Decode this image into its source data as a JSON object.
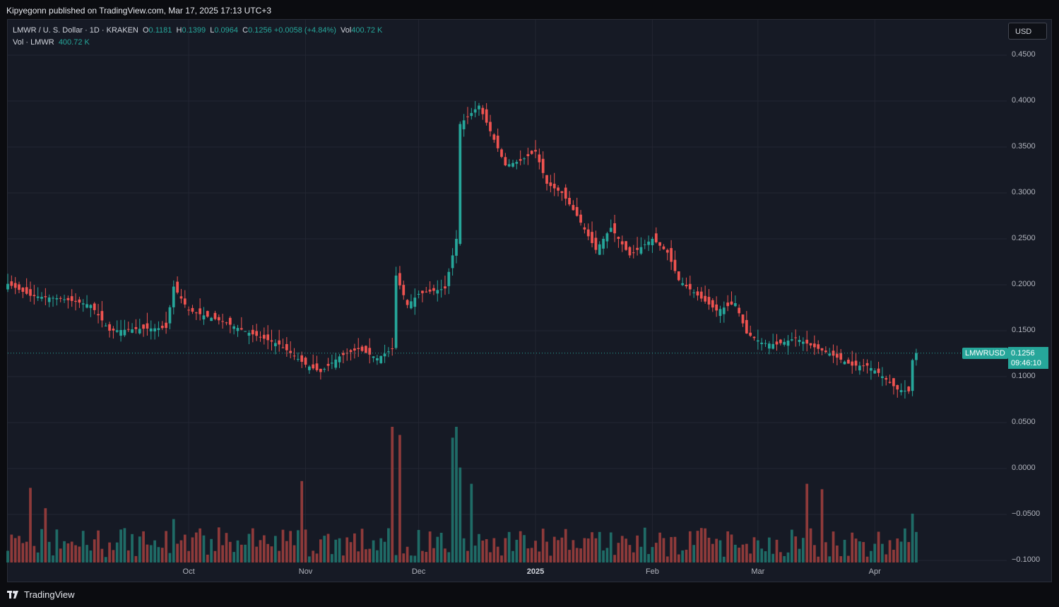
{
  "header": {
    "published": "Kipyegonn published on TradingView.com, Mar 17, 2025 17:13 UTC+3"
  },
  "legend": {
    "ticker": "LMWR / U. S. Dollar · 1D · KRAKEN",
    "o_label": "O",
    "o_value": "0.1181",
    "h_label": "H",
    "h_value": "0.1399",
    "l_label": "L",
    "l_value": "0.0964",
    "c_label": "C",
    "c_value": "0.1256",
    "change": "+0.0058 (+4.84%)",
    "vol_label": "Vol",
    "vol_value": "400.72 K",
    "vol_line_label": "Vol · LMWR",
    "vol_line_value": "400.72 K"
  },
  "currency": "USD",
  "last_price": {
    "symbol": "LMWRUSD",
    "price": "0.1256",
    "countdown": "09:46:10"
  },
  "brand": "TradingView",
  "colors": {
    "up": "#26a69a",
    "down": "#ef5350",
    "background": "#161a25",
    "grid": "#232632"
  },
  "chart_data": {
    "type": "candlestick",
    "interval": "1D",
    "yaxis_ticks": [
      "0.4500",
      "0.4000",
      "0.3500",
      "0.3000",
      "0.2500",
      "0.2000",
      "0.1500",
      "0.1000",
      "0.0500",
      "0.0000",
      "−0.0500",
      "−0.1000"
    ],
    "yaxis_values": [
      0.45,
      0.4,
      0.35,
      0.3,
      0.25,
      0.2,
      0.15,
      0.1,
      0.05,
      0.0,
      -0.05,
      -0.1
    ],
    "ylim": [
      -0.1,
      0.46
    ],
    "xaxis_ticks": [
      {
        "label": "Oct",
        "date": "2024-10-01",
        "bold": false
      },
      {
        "label": "Nov",
        "date": "2024-11-01",
        "bold": false
      },
      {
        "label": "Dec",
        "date": "2024-12-01",
        "bold": false
      },
      {
        "label": "2025",
        "date": "2025-01-01",
        "bold": true
      },
      {
        "label": "Feb",
        "date": "2025-02-01",
        "bold": false
      },
      {
        "label": "Mar",
        "date": "2025-03-01",
        "bold": false
      },
      {
        "label": "Apr",
        "date": "2025-04-01",
        "bold": false
      }
    ],
    "xlim": [
      "2024-08-14",
      "2025-05-06"
    ],
    "last_close": 0.1256,
    "close_anchors": [
      [
        "2024-08-14",
        0.201
      ],
      [
        "2024-08-20",
        0.188
      ],
      [
        "2024-08-28",
        0.185
      ],
      [
        "2024-09-05",
        0.178
      ],
      [
        "2024-09-10",
        0.15
      ],
      [
        "2024-09-18",
        0.152
      ],
      [
        "2024-09-25",
        0.153
      ],
      [
        "2024-09-27",
        0.198
      ],
      [
        "2024-10-01",
        0.172
      ],
      [
        "2024-10-10",
        0.16
      ],
      [
        "2024-10-18",
        0.146
      ],
      [
        "2024-10-25",
        0.135
      ],
      [
        "2024-11-01",
        0.113
      ],
      [
        "2024-11-05",
        0.105
      ],
      [
        "2024-11-10",
        0.122
      ],
      [
        "2024-11-15",
        0.13
      ],
      [
        "2024-11-20",
        0.12
      ],
      [
        "2024-11-24",
        0.13
      ],
      [
        "2024-11-25",
        0.21
      ],
      [
        "2024-11-28",
        0.178
      ],
      [
        "2024-12-01",
        0.19
      ],
      [
        "2024-12-08",
        0.196
      ],
      [
        "2024-12-11",
        0.25
      ],
      [
        "2024-12-12",
        0.375
      ],
      [
        "2024-12-17",
        0.395
      ],
      [
        "2024-12-24",
        0.33
      ],
      [
        "2024-12-28",
        0.335
      ],
      [
        "2025-01-01",
        0.345
      ],
      [
        "2025-01-04",
        0.31
      ],
      [
        "2025-01-08",
        0.3
      ],
      [
        "2025-01-12",
        0.275
      ],
      [
        "2025-01-17",
        0.238
      ],
      [
        "2025-01-21",
        0.262
      ],
      [
        "2025-01-26",
        0.232
      ],
      [
        "2025-02-01",
        0.25
      ],
      [
        "2025-02-05",
        0.235
      ],
      [
        "2025-02-08",
        0.205
      ],
      [
        "2025-02-14",
        0.185
      ],
      [
        "2025-02-18",
        0.172
      ],
      [
        "2025-02-23",
        0.18
      ],
      [
        "2025-02-26",
        0.147
      ],
      [
        "2025-03-02",
        0.137
      ],
      [
        "2025-03-06",
        0.135
      ],
      [
        "2025-03-11",
        0.142
      ],
      [
        "2025-03-16",
        0.132
      ],
      [
        "2025-03-20",
        0.125
      ],
      [
        "2025-03-26",
        0.112
      ],
      [
        "2025-03-30",
        0.112
      ],
      [
        "2025-04-02",
        0.104
      ],
      [
        "2025-04-07",
        0.086
      ],
      [
        "2025-04-10",
        0.084
      ],
      [
        "2025-04-11",
        0.118
      ],
      [
        "2025-04-12",
        0.1256
      ]
    ],
    "volume_spikes": [
      [
        "2024-08-20",
        0.55
      ],
      [
        "2024-08-24",
        0.4
      ],
      [
        "2024-09-27",
        0.32
      ],
      [
        "2024-10-31",
        0.6
      ],
      [
        "2024-11-24",
        1.0
      ],
      [
        "2024-11-26",
        0.94
      ],
      [
        "2024-12-10",
        0.92
      ],
      [
        "2024-12-11",
        1.0
      ],
      [
        "2024-12-12",
        0.7
      ],
      [
        "2024-12-15",
        0.58
      ],
      [
        "2025-03-14",
        0.58
      ],
      [
        "2025-03-18",
        0.54
      ],
      [
        "2025-04-11",
        0.36
      ]
    ]
  }
}
